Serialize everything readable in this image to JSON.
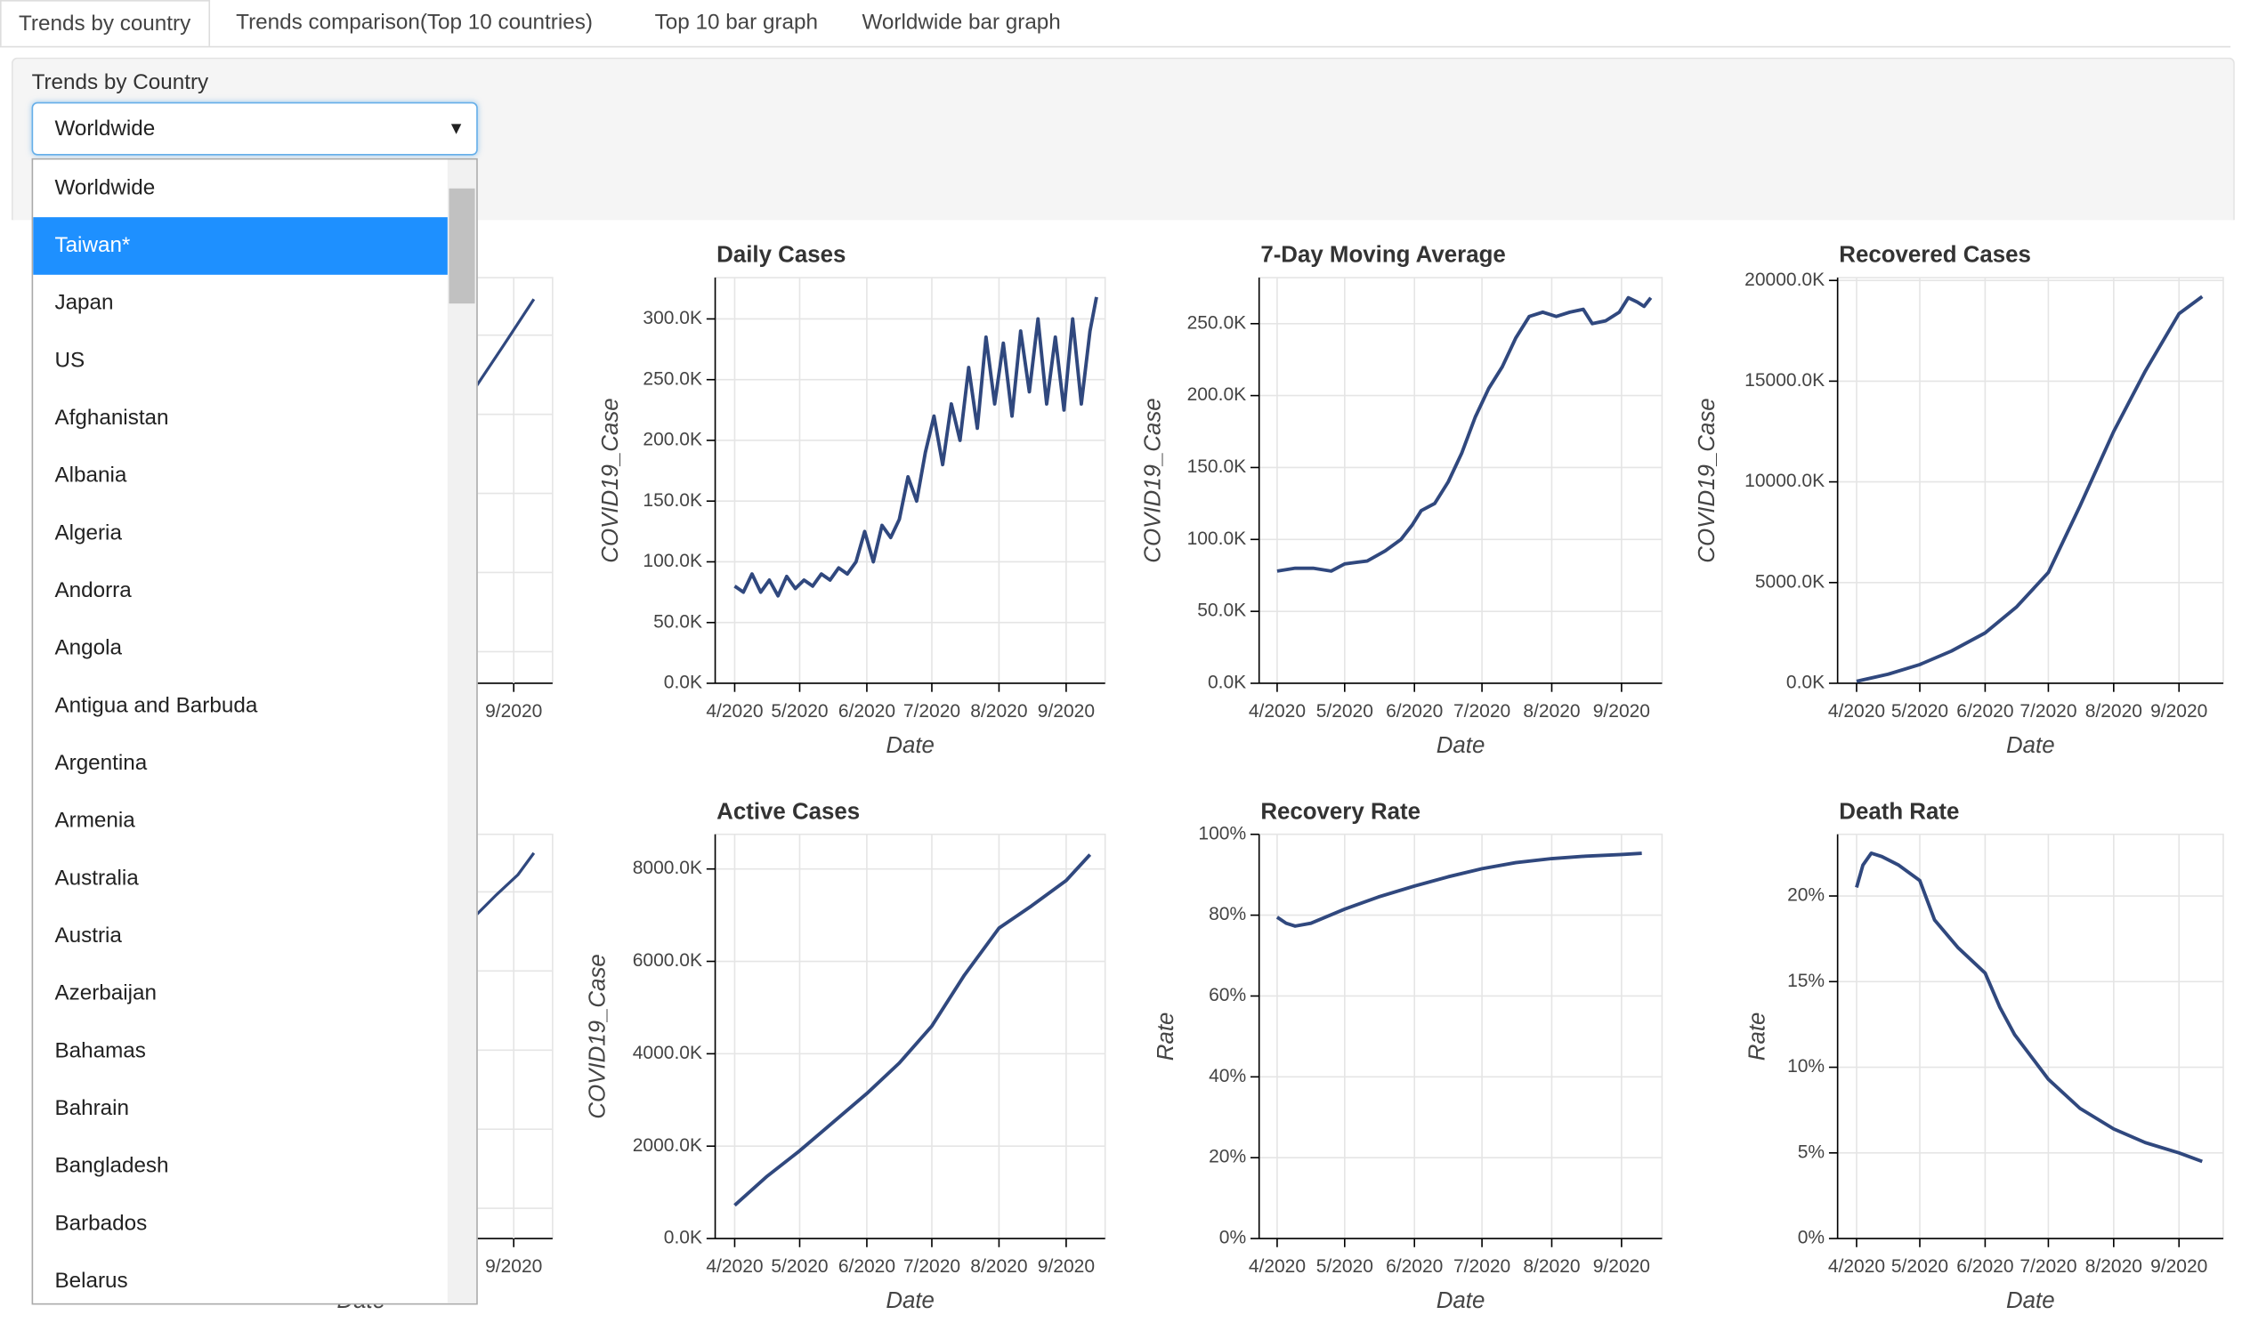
{
  "tabs": [
    "Trends by country",
    "Trends comparison(Top 10 countries)",
    "Top 10 bar graph",
    "Worldwide bar graph"
  ],
  "panel": {
    "label": "Trends by Country",
    "selected": "Worldwide",
    "options": [
      "Worldwide",
      "Taiwan*",
      "Japan",
      "US",
      "Afghanistan",
      "Albania",
      "Algeria",
      "Andorra",
      "Angola",
      "Antigua and Barbuda",
      "Argentina",
      "Armenia",
      "Australia",
      "Austria",
      "Azerbaijan",
      "Bahamas",
      "Bahrain",
      "Bangladesh",
      "Barbados",
      "Belarus"
    ],
    "highlighted": "Taiwan*"
  },
  "hidden_panels": [
    {
      "xtick": "9/2020",
      "xlabel": "Date"
    },
    {
      "xtick": "9/2020",
      "xlabel": "Date"
    }
  ],
  "chart_data": [
    {
      "type": "line",
      "title": "Daily Cases",
      "xlabel": "Date",
      "ylabel": "COVID19_Case",
      "color": "#30487e",
      "grid": true,
      "x": [
        0,
        4,
        8,
        12,
        16,
        20,
        24,
        28,
        32,
        36,
        40,
        44,
        48,
        52,
        56,
        60,
        64,
        68,
        72,
        76,
        80,
        84,
        88,
        92,
        96,
        100,
        104,
        108,
        112,
        116,
        120,
        124,
        128,
        132,
        136,
        140,
        144,
        148,
        152,
        156,
        160,
        164,
        167
      ],
      "values": [
        80000,
        75000,
        90000,
        75000,
        85000,
        72000,
        88000,
        78000,
        85000,
        80000,
        90000,
        85000,
        95000,
        90000,
        100000,
        125000,
        100000,
        130000,
        120000,
        135000,
        170000,
        150000,
        190000,
        220000,
        180000,
        230000,
        200000,
        260000,
        210000,
        285000,
        230000,
        280000,
        220000,
        290000,
        240000,
        300000,
        230000,
        285000,
        225000,
        300000,
        230000,
        290000,
        318000
      ],
      "xlim": [
        -9,
        171
      ],
      "ylim": [
        0,
        334000
      ],
      "xticks": [
        {
          "value": 0,
          "label": "4/2020"
        },
        {
          "value": 30,
          "label": "5/2020"
        },
        {
          "value": 61,
          "label": "6/2020"
        },
        {
          "value": 91,
          "label": "7/2020"
        },
        {
          "value": 122,
          "label": "8/2020"
        },
        {
          "value": 153,
          "label": "9/2020"
        }
      ],
      "yticks": [
        {
          "value": 0,
          "label": "0.0K"
        },
        {
          "value": 50000,
          "label": "50.0K"
        },
        {
          "value": 100000,
          "label": "100.0K"
        },
        {
          "value": 150000,
          "label": "150.0K"
        },
        {
          "value": 200000,
          "label": "200.0K"
        },
        {
          "value": 250000,
          "label": "250.0K"
        },
        {
          "value": 300000,
          "label": "300.0K"
        }
      ]
    },
    {
      "type": "line",
      "title": "7-Day Moving Average",
      "xlabel": "Date",
      "ylabel": "COVID19_Case",
      "color": "#30487e",
      "grid": true,
      "x": [
        0,
        8,
        16,
        24,
        30,
        40,
        48,
        55,
        60,
        64,
        70,
        76,
        82,
        88,
        94,
        100,
        106,
        112,
        118,
        124,
        130,
        136,
        140,
        146,
        152,
        156,
        160,
        163,
        166
      ],
      "values": [
        78000,
        80000,
        80000,
        78000,
        83000,
        85000,
        92000,
        100000,
        110000,
        120000,
        125000,
        140000,
        160000,
        185000,
        205000,
        220000,
        240000,
        255000,
        258000,
        255000,
        258000,
        260000,
        250000,
        252000,
        258000,
        268000,
        265000,
        262000,
        268000
      ],
      "xlim": [
        -8,
        171
      ],
      "ylim": [
        0,
        282000
      ],
      "xticks": [
        {
          "value": 0,
          "label": "4/2020"
        },
        {
          "value": 30,
          "label": "5/2020"
        },
        {
          "value": 61,
          "label": "6/2020"
        },
        {
          "value": 91,
          "label": "7/2020"
        },
        {
          "value": 122,
          "label": "8/2020"
        },
        {
          "value": 153,
          "label": "9/2020"
        }
      ],
      "yticks": [
        {
          "value": 0,
          "label": "0.0K"
        },
        {
          "value": 50000,
          "label": "50.0K"
        },
        {
          "value": 100000,
          "label": "100.0K"
        },
        {
          "value": 150000,
          "label": "150.0K"
        },
        {
          "value": 200000,
          "label": "200.0K"
        },
        {
          "value": 250000,
          "label": "250.0K"
        }
      ]
    },
    {
      "type": "line",
      "title": "Recovered Cases",
      "xlabel": "Date",
      "ylabel": "COVID19_Case",
      "color": "#30487e",
      "grid": true,
      "x": [
        0,
        15,
        30,
        45,
        61,
        76,
        91,
        106,
        122,
        137,
        153,
        164
      ],
      "values": [
        100000,
        450000,
        930000,
        1600000,
        2500000,
        3800000,
        5500000,
        8800000,
        12500000,
        15500000,
        18350000,
        19200000
      ],
      "xlim": [
        -9,
        174
      ],
      "ylim": [
        0,
        20140000
      ],
      "xticks": [
        {
          "value": 0,
          "label": "4/2020"
        },
        {
          "value": 30,
          "label": "5/2020"
        },
        {
          "value": 61,
          "label": "6/2020"
        },
        {
          "value": 91,
          "label": "7/2020"
        },
        {
          "value": 122,
          "label": "8/2020"
        },
        {
          "value": 153,
          "label": "9/2020"
        }
      ],
      "yticks": [
        {
          "value": 0,
          "label": "0.0K"
        },
        {
          "value": 5000000,
          "label": "5000.0K"
        },
        {
          "value": 10000000,
          "label": "10000.0K"
        },
        {
          "value": 15000000,
          "label": "15000.0K"
        },
        {
          "value": 20000000,
          "label": "20000.0K"
        }
      ]
    },
    {
      "type": "line",
      "title": "Active Cases",
      "xlabel": "Date",
      "ylabel": "COVID19_Case",
      "color": "#30487e",
      "grid": true,
      "x": [
        0,
        15,
        30,
        45,
        61,
        76,
        91,
        106,
        122,
        137,
        153,
        164
      ],
      "values": [
        720000,
        1350000,
        1900000,
        2500000,
        3140000,
        3800000,
        4600000,
        5700000,
        6720000,
        7200000,
        7750000,
        8310000
      ],
      "xlim": [
        -9,
        171
      ],
      "ylim": [
        0,
        8750000
      ],
      "xticks": [
        {
          "value": 0,
          "label": "4/2020"
        },
        {
          "value": 30,
          "label": "5/2020"
        },
        {
          "value": 61,
          "label": "6/2020"
        },
        {
          "value": 91,
          "label": "7/2020"
        },
        {
          "value": 122,
          "label": "8/2020"
        },
        {
          "value": 153,
          "label": "9/2020"
        }
      ],
      "yticks": [
        {
          "value": 0,
          "label": "0.0K"
        },
        {
          "value": 2000000,
          "label": "2000.0K"
        },
        {
          "value": 4000000,
          "label": "4000.0K"
        },
        {
          "value": 6000000,
          "label": "6000.0K"
        },
        {
          "value": 8000000,
          "label": "8000.0K"
        }
      ]
    },
    {
      "type": "line",
      "title": "Recovery Rate",
      "xlabel": "Date",
      "ylabel": "Rate",
      "color": "#30487e",
      "grid": true,
      "x": [
        0,
        4,
        8,
        15,
        30,
        45,
        61,
        76,
        91,
        106,
        122,
        137,
        153,
        162
      ],
      "values": [
        79.5,
        78,
        77.3,
        78,
        81.5,
        84.5,
        87.2,
        89.5,
        91.5,
        93,
        94,
        94.6,
        95,
        95.3
      ],
      "xlim": [
        -8,
        171
      ],
      "ylim": [
        0,
        100
      ],
      "xticks": [
        {
          "value": 0,
          "label": "4/2020"
        },
        {
          "value": 30,
          "label": "5/2020"
        },
        {
          "value": 61,
          "label": "6/2020"
        },
        {
          "value": 91,
          "label": "7/2020"
        },
        {
          "value": 122,
          "label": "8/2020"
        },
        {
          "value": 153,
          "label": "9/2020"
        }
      ],
      "yticks": [
        {
          "value": 0,
          "label": "0%"
        },
        {
          "value": 20,
          "label": "20%"
        },
        {
          "value": 40,
          "label": "40%"
        },
        {
          "value": 60,
          "label": "60%"
        },
        {
          "value": 80,
          "label": "80%"
        },
        {
          "value": 100,
          "label": "100%"
        }
      ]
    },
    {
      "type": "line",
      "title": "Death Rate",
      "xlabel": "Date",
      "ylabel": "Rate",
      "color": "#30487e",
      "grid": true,
      "x": [
        0,
        3,
        7,
        12,
        20,
        30,
        37,
        48,
        61,
        68,
        75,
        91,
        106,
        122,
        137,
        153,
        164
      ],
      "values": [
        20.5,
        21.8,
        22.5,
        22.3,
        21.8,
        20.9,
        18.6,
        17,
        15.5,
        13.5,
        11.9,
        9.3,
        7.6,
        6.4,
        5.6,
        5,
        4.5
      ],
      "xlim": [
        -9,
        174
      ],
      "ylim": [
        0,
        23.6
      ],
      "xticks": [
        {
          "value": 0,
          "label": "4/2020"
        },
        {
          "value": 30,
          "label": "5/2020"
        },
        {
          "value": 61,
          "label": "6/2020"
        },
        {
          "value": 91,
          "label": "7/2020"
        },
        {
          "value": 122,
          "label": "8/2020"
        },
        {
          "value": 153,
          "label": "9/2020"
        }
      ],
      "yticks": [
        {
          "value": 0,
          "label": "0%"
        },
        {
          "value": 5,
          "label": "5%"
        },
        {
          "value": 10,
          "label": "10%"
        },
        {
          "value": 15,
          "label": "15%"
        },
        {
          "value": 20,
          "label": "20%"
        }
      ]
    }
  ]
}
